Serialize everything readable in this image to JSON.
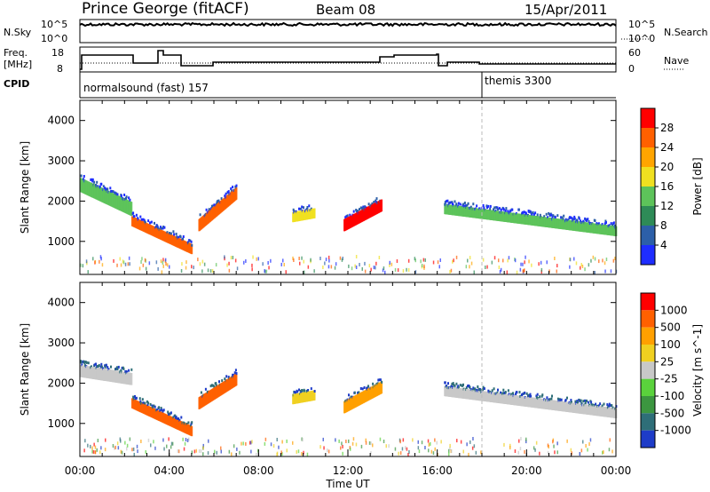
{
  "header": {
    "station": "Prince George (fitACF)",
    "beam": "Beam 08",
    "date": "15/Apr/2011"
  },
  "noise_panel": {
    "left_label": "N.Sky",
    "right_label": "N.Search",
    "left_ticks": [
      "10^5",
      "10^0"
    ],
    "right_ticks": [
      "10^5",
      "10^0"
    ]
  },
  "freq_panel": {
    "left_label_1": "Freq.",
    "left_label_2": "[MHz]",
    "right_label": "Nave",
    "left_ticks": [
      "18",
      "8"
    ],
    "right_ticks": [
      "60",
      "0"
    ]
  },
  "cpid_panel": {
    "label": "CPID",
    "modes": [
      {
        "name": "normalsound (fast) 157",
        "start_hour": 0
      },
      {
        "name": "themis 3300",
        "start_hour": 18
      }
    ]
  },
  "chart_data": [
    {
      "type": "heatmap",
      "ylabel": "Slant Range [km]",
      "xlabel": "Time UT",
      "x_ticks": [
        "00:00",
        "04:00",
        "08:00",
        "12:00",
        "16:00",
        "20:00",
        "00:00"
      ],
      "x_range_hours": [
        0,
        24
      ],
      "y_ticks": [
        "1000",
        "2000",
        "3000",
        "4000"
      ],
      "ylim": [
        180,
        4500
      ],
      "colorbar": {
        "label": "Power [dB]",
        "ticks": [
          "4",
          "8",
          "12",
          "16",
          "20",
          "24",
          "28"
        ],
        "colors": [
          "#1e2dff",
          "#2c5fa8",
          "#2e8b57",
          "#5dc35a",
          "#f0e020",
          "#ffa500",
          "#ff6000",
          "#ff0000"
        ]
      },
      "features": [
        {
          "t0": 0.0,
          "t1": 2.3,
          "r0": 2400,
          "r1": 1800,
          "w": 350,
          "color": "#5dc35a"
        },
        {
          "t0": 2.3,
          "t1": 5.0,
          "r0": 1500,
          "r1": 800,
          "w": 250,
          "color": "#ff6000"
        },
        {
          "t0": 5.3,
          "t1": 7.0,
          "r0": 1400,
          "r1": 2200,
          "w": 300,
          "color": "#ff6000"
        },
        {
          "t0": 9.5,
          "t1": 10.5,
          "r0": 1600,
          "r1": 1700,
          "w": 250,
          "color": "#f0e020"
        },
        {
          "t0": 11.8,
          "t1": 13.5,
          "r0": 1400,
          "r1": 1900,
          "w": 300,
          "color": "#ff0000"
        },
        {
          "t0": 16.3,
          "t1": 24.0,
          "r0": 1800,
          "r1": 1250,
          "w": 250,
          "color": "#5dc35a"
        }
      ]
    },
    {
      "type": "heatmap",
      "ylabel": "Slant Range [km]",
      "xlabel": "Time UT",
      "x_ticks": [
        "00:00",
        "04:00",
        "08:00",
        "12:00",
        "16:00",
        "20:00",
        "00:00"
      ],
      "x_range_hours": [
        0,
        24
      ],
      "y_ticks": [
        "1000",
        "2000",
        "3000",
        "4000"
      ],
      "ylim": [
        180,
        4500
      ],
      "colorbar": {
        "label": "Velocity [m s^-1]",
        "ticks": [
          "1000",
          "500",
          "100",
          "25",
          "-25",
          "-100",
          "-500",
          "-1000"
        ],
        "colors": [
          "#1e3cc8",
          "#2e6e78",
          "#3c9640",
          "#5ad23c",
          "#c8c8c8",
          "#f0d020",
          "#ffa000",
          "#ff6000",
          "#ff0000"
        ]
      },
      "features": [
        {
          "t0": 0.0,
          "t1": 2.3,
          "r0": 2300,
          "r1": 2100,
          "w": 300,
          "color": "#c8c8c8"
        },
        {
          "t0": 2.3,
          "t1": 5.0,
          "r0": 1500,
          "r1": 800,
          "w": 250,
          "color": "#ff6000"
        },
        {
          "t0": 5.3,
          "t1": 7.0,
          "r0": 1500,
          "r1": 2100,
          "w": 300,
          "color": "#ff6000"
        },
        {
          "t0": 9.5,
          "t1": 10.5,
          "r0": 1600,
          "r1": 1700,
          "w": 250,
          "color": "#f0d020"
        },
        {
          "t0": 11.8,
          "t1": 13.5,
          "r0": 1400,
          "r1": 1900,
          "w": 300,
          "color": "#ffa000"
        },
        {
          "t0": 16.3,
          "t1": 24.0,
          "r0": 1800,
          "r1": 1250,
          "w": 250,
          "color": "#c8c8c8"
        }
      ]
    }
  ]
}
